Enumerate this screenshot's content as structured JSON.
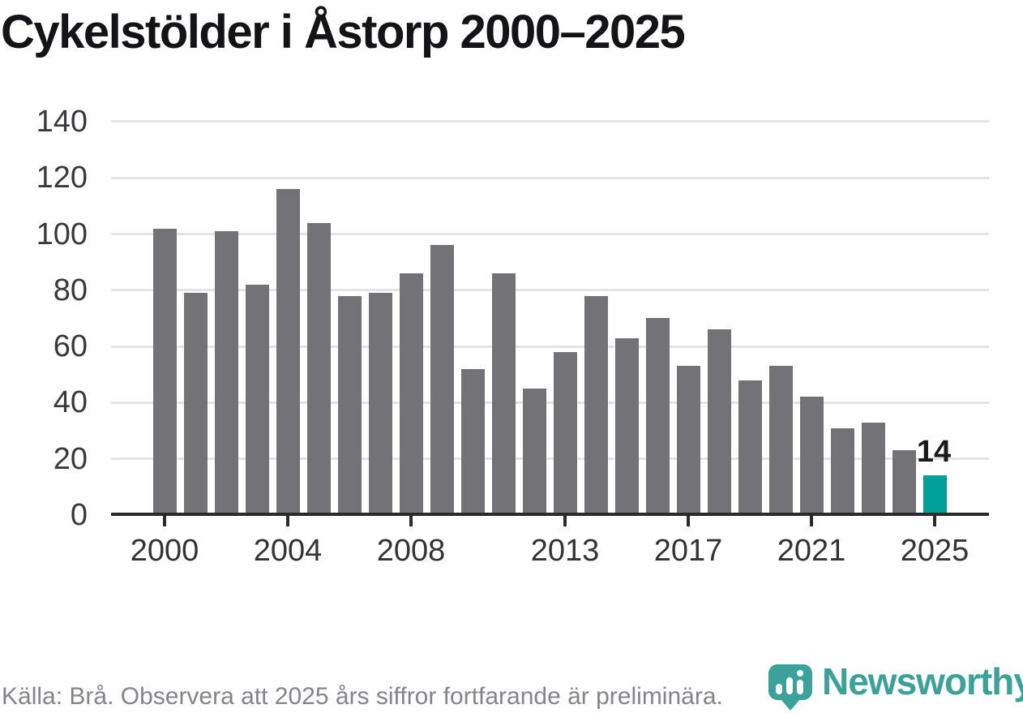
{
  "title": "Cykelstölder i Åstorp 2000–2025",
  "footer": {
    "source_note": "Källa: Brå. Observera att 2025 års siffror fortfarande är preliminära."
  },
  "logo": {
    "icon": "newsworthy-pin-icon",
    "text": "Newsworthy",
    "color": "#3aa29b"
  },
  "colors": {
    "bar": "#727277",
    "highlight": "#00a09b",
    "axis": "#2b2b2e",
    "gridline": "#e4e4e6",
    "title_text": "#141418",
    "axis_text": "#3a3a3e",
    "footer_text": "#84848c"
  },
  "chart_data": {
    "type": "bar",
    "title": "Cykelstölder i Åstorp 2000–2025",
    "xlabel": "",
    "ylabel": "",
    "x": [
      2000,
      2001,
      2002,
      2003,
      2004,
      2005,
      2006,
      2007,
      2008,
      2009,
      2010,
      2011,
      2012,
      2013,
      2014,
      2015,
      2016,
      2017,
      2018,
      2019,
      2020,
      2021,
      2022,
      2023,
      2024,
      2025
    ],
    "values": [
      102,
      79,
      101,
      82,
      116,
      104,
      78,
      79,
      86,
      96,
      52,
      86,
      45,
      58,
      78,
      63,
      70,
      53,
      66,
      48,
      53,
      42,
      31,
      33,
      23,
      14
    ],
    "ylim": [
      0,
      140
    ],
    "y_ticks": [
      0,
      20,
      40,
      60,
      80,
      100,
      120,
      140
    ],
    "x_tick_years": [
      2000,
      2004,
      2008,
      2013,
      2017,
      2021,
      2025
    ],
    "x_tick_labels": [
      "2000",
      "2004",
      "2008",
      "2013",
      "2017",
      "2021",
      "2025"
    ],
    "grid": true,
    "legend": "none",
    "highlight_year": 2025,
    "highlight_value_label": "14"
  }
}
